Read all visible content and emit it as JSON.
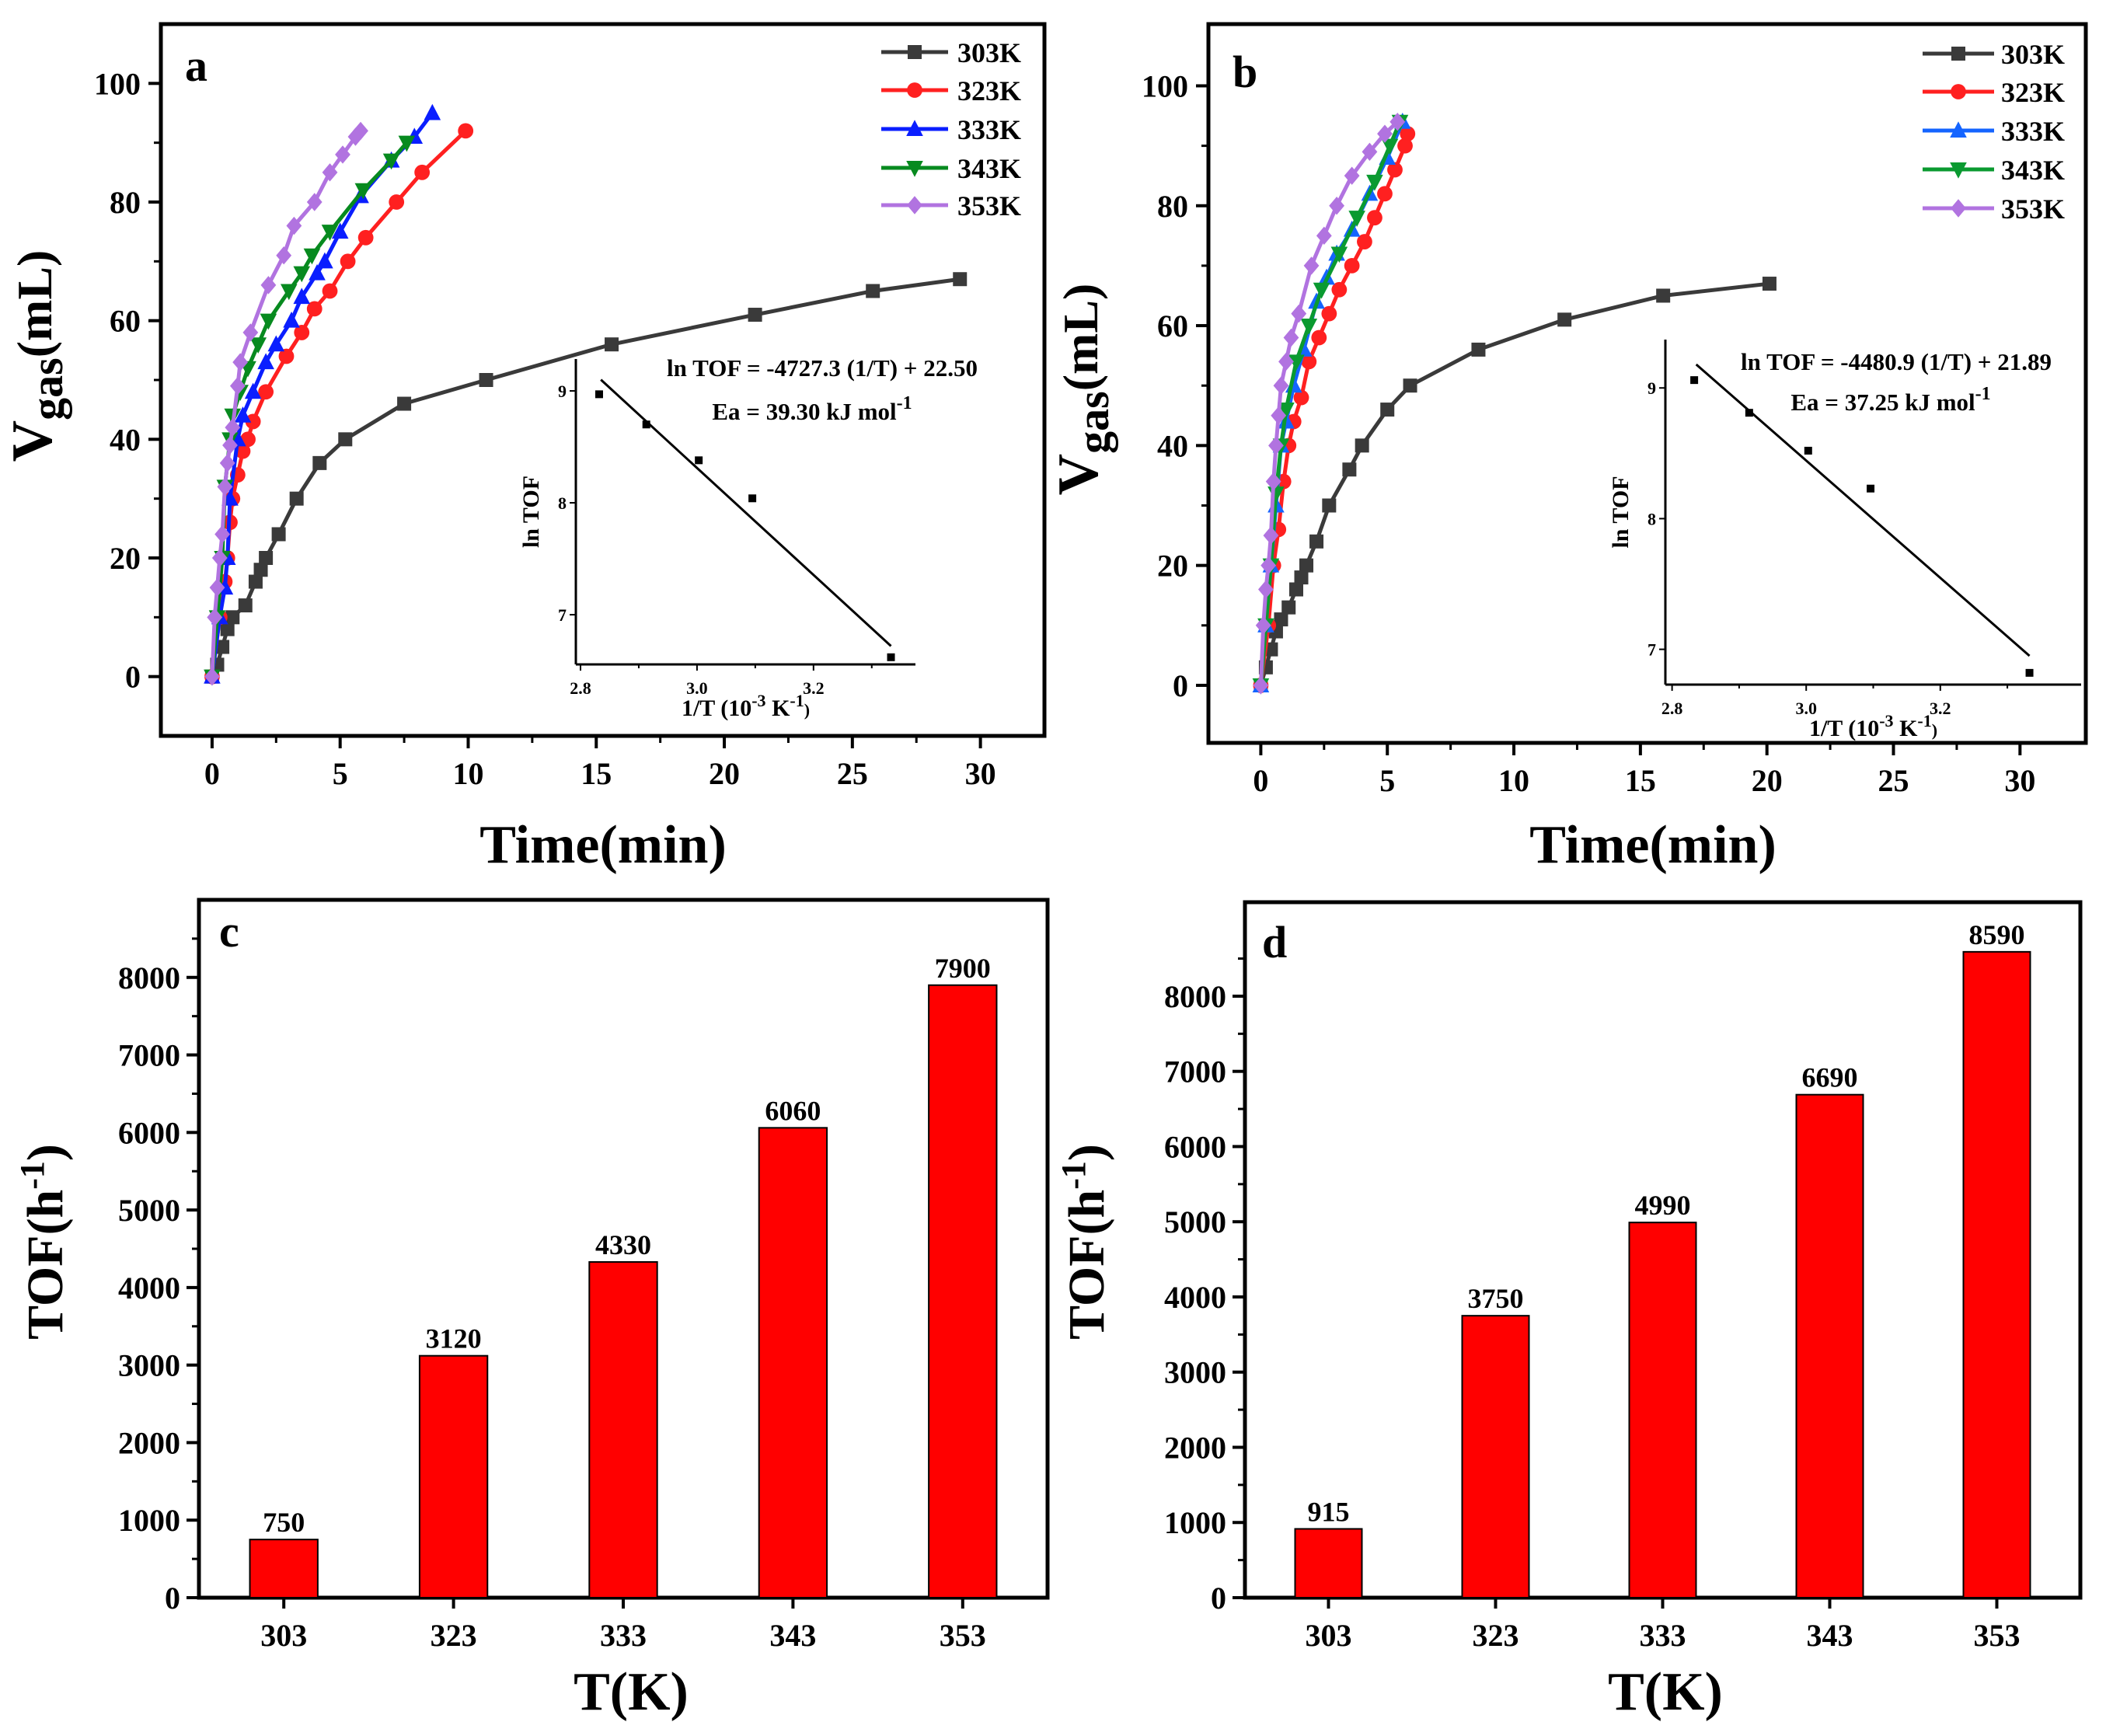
{
  "chart_data": [
    {
      "type": "line",
      "panel_label": "a",
      "xlabel": "Time(min)",
      "ylabel_main": "V",
      "ylabel_sub": "gas",
      "ylabel_rest": "(mL)",
      "xlim": [
        -2,
        32.5
      ],
      "ylim": [
        -10,
        110
      ],
      "xticks": [
        0,
        5,
        10,
        15,
        20,
        25,
        30
      ],
      "yticks": [
        0,
        20,
        40,
        60,
        80,
        100
      ],
      "legend_position": "top-right",
      "series": [
        {
          "name": "303K",
          "color": "#3a3a3a",
          "marker": "square",
          "points": [
            [
              0,
              0
            ],
            [
              0.2,
              2
            ],
            [
              0.4,
              5
            ],
            [
              0.6,
              8
            ],
            [
              0.8,
              10
            ],
            [
              1.3,
              12
            ],
            [
              1.7,
              16
            ],
            [
              1.9,
              18
            ],
            [
              2.1,
              20
            ],
            [
              2.6,
              24
            ],
            [
              3.3,
              30
            ],
            [
              4.2,
              36
            ],
            [
              5.2,
              40
            ],
            [
              7.5,
              46
            ],
            [
              10.7,
              50
            ],
            [
              15.6,
              56
            ],
            [
              21.2,
              61
            ],
            [
              25.8,
              65
            ],
            [
              29.2,
              67
            ]
          ]
        },
        {
          "name": "323K",
          "color": "#ff2020",
          "marker": "circle",
          "points": [
            [
              0,
              0
            ],
            [
              0.3,
              10
            ],
            [
              0.5,
              16
            ],
            [
              0.6,
              20
            ],
            [
              0.7,
              26
            ],
            [
              0.8,
              30
            ],
            [
              1,
              34
            ],
            [
              1.2,
              38
            ],
            [
              1.4,
              40
            ],
            [
              1.6,
              43
            ],
            [
              2.1,
              48
            ],
            [
              2.9,
              54
            ],
            [
              3.5,
              58
            ],
            [
              4,
              62
            ],
            [
              4.6,
              65
            ],
            [
              5.3,
              70
            ],
            [
              6,
              74
            ],
            [
              7.2,
              80
            ],
            [
              8.2,
              85
            ],
            [
              9.9,
              92
            ]
          ]
        },
        {
          "name": "333K",
          "color": "#0a1eff",
          "marker": "triangle-up",
          "points": [
            [
              0,
              0
            ],
            [
              0.3,
              10
            ],
            [
              0.5,
              15
            ],
            [
              0.6,
              20
            ],
            [
              0.7,
              30
            ],
            [
              1,
              40
            ],
            [
              1.2,
              44
            ],
            [
              1.6,
              48
            ],
            [
              2.1,
              53
            ],
            [
              2.5,
              56
            ],
            [
              3.1,
              60
            ],
            [
              3.5,
              64
            ],
            [
              4.1,
              68
            ],
            [
              4.4,
              70
            ],
            [
              5,
              75
            ],
            [
              5.8,
              81
            ],
            [
              7,
              87
            ],
            [
              7.9,
              91
            ],
            [
              8.6,
              95
            ]
          ]
        },
        {
          "name": "343K",
          "color": "#078a1f",
          "marker": "triangle-down",
          "points": [
            [
              0,
              0
            ],
            [
              0.2,
              10
            ],
            [
              0.4,
              20
            ],
            [
              0.5,
              32
            ],
            [
              0.7,
              40
            ],
            [
              0.8,
              44
            ],
            [
              1.1,
              48
            ],
            [
              1.4,
              52
            ],
            [
              1.8,
              56
            ],
            [
              2.2,
              60
            ],
            [
              3,
              65
            ],
            [
              3.5,
              68
            ],
            [
              3.9,
              71
            ],
            [
              4.6,
              75
            ],
            [
              5.9,
              82
            ],
            [
              7,
              87
            ],
            [
              7.6,
              90
            ]
          ]
        },
        {
          "name": "353K",
          "color": "#b173e0",
          "marker": "diamond",
          "points": [
            [
              0,
              0
            ],
            [
              0.1,
              10
            ],
            [
              0.2,
              15
            ],
            [
              0.3,
              20
            ],
            [
              0.4,
              24
            ],
            [
              0.5,
              32
            ],
            [
              0.6,
              36
            ],
            [
              0.7,
              39
            ],
            [
              0.8,
              42
            ],
            [
              1,
              49
            ],
            [
              1.1,
              53
            ],
            [
              1.5,
              58
            ],
            [
              2.2,
              66
            ],
            [
              2.8,
              71
            ],
            [
              3.2,
              76
            ],
            [
              4,
              80
            ],
            [
              4.6,
              85
            ],
            [
              5.1,
              88
            ],
            [
              5.6,
              91
            ],
            [
              5.8,
              92
            ]
          ]
        }
      ],
      "inset": {
        "type": "scatter",
        "xlabel": "1/T (10",
        "xlabel_sup1": "-3",
        "xlabel_mid": " K",
        "xlabel_sup2": "-1",
        "xlabel_end": ")",
        "ylabel": "ln TOF",
        "xlim": [
          2.792,
          3.375
        ],
        "ylim": [
          6.556,
          9.285
        ],
        "xticks": [
          "2.8",
          "3.0",
          "3.2"
        ],
        "yticks": [
          "7",
          "8",
          "9"
        ],
        "x": [
          2.832,
          2.913,
          3.003,
          3.095,
          3.333
        ],
        "y": [
          8.97,
          8.7,
          8.38,
          8.04,
          6.62
        ],
        "fit": {
          "slope": -4727.3,
          "intercept": 22.5
        },
        "fit_line_y": [
          9.1,
          6.72
        ],
        "equation": "ln TOF = -4727.3 (1/T) + 22.50",
        "ea_text": "Ea = 39.30 kJ mol",
        "ea_sup": "-1"
      }
    },
    {
      "type": "line",
      "panel_label": "b",
      "xlabel": "Time(min)",
      "ylabel_main": "V",
      "ylabel_sub": "gas",
      "ylabel_rest": "(mL)",
      "xlim": [
        -2.07,
        32.6
      ],
      "ylim": [
        -9.6,
        110.3
      ],
      "xticks": [
        0,
        5,
        10,
        15,
        20,
        25,
        30
      ],
      "yticks": [
        0,
        20,
        40,
        60,
        80,
        100
      ],
      "legend_position": "top-right",
      "series": [
        {
          "name": "303K",
          "color": "#3a3a3a",
          "marker": "square",
          "points": [
            [
              0,
              0
            ],
            [
              0.2,
              3
            ],
            [
              0.4,
              6
            ],
            [
              0.6,
              9
            ],
            [
              0.8,
              11
            ],
            [
              1.1,
              13
            ],
            [
              1.4,
              16
            ],
            [
              1.6,
              18
            ],
            [
              1.8,
              20
            ],
            [
              2.2,
              24
            ],
            [
              2.7,
              30
            ],
            [
              3.5,
              36
            ],
            [
              4,
              40
            ],
            [
              5,
              46
            ],
            [
              5.9,
              50
            ],
            [
              8.6,
              56
            ],
            [
              12,
              61
            ],
            [
              15.9,
              65
            ],
            [
              20.1,
              67
            ]
          ]
        },
        {
          "name": "323K",
          "color": "#ff2020",
          "marker": "circle",
          "points": [
            [
              0,
              0
            ],
            [
              0.3,
              10
            ],
            [
              0.5,
              20
            ],
            [
              0.7,
              26
            ],
            [
              0.9,
              34
            ],
            [
              1.1,
              40
            ],
            [
              1.3,
              44
            ],
            [
              1.6,
              48
            ],
            [
              1.9,
              54
            ],
            [
              2.3,
              58
            ],
            [
              2.7,
              62
            ],
            [
              3.1,
              66
            ],
            [
              3.6,
              70
            ],
            [
              4.1,
              74
            ],
            [
              4.5,
              78
            ],
            [
              4.9,
              82
            ],
            [
              5.3,
              86
            ],
            [
              5.7,
              90
            ],
            [
              5.8,
              92
            ]
          ]
        },
        {
          "name": "333K",
          "color": "#1464ff",
          "marker": "triangle-up",
          "points": [
            [
              0,
              0
            ],
            [
              0.2,
              10
            ],
            [
              0.4,
              20
            ],
            [
              0.6,
              30
            ],
            [
              0.8,
              40
            ],
            [
              1,
              44
            ],
            [
              1.3,
              50
            ],
            [
              1.7,
              56
            ],
            [
              2.2,
              64
            ],
            [
              2.6,
              68
            ],
            [
              3,
              72
            ],
            [
              3.6,
              76
            ],
            [
              4.3,
              82
            ],
            [
              5,
              88
            ],
            [
              5.6,
              94
            ]
          ]
        },
        {
          "name": "343K",
          "color": "#0a9a30",
          "marker": "triangle-down",
          "points": [
            [
              0,
              0
            ],
            [
              0.2,
              10
            ],
            [
              0.4,
              20
            ],
            [
              0.6,
              32
            ],
            [
              0.8,
              40
            ],
            [
              1.0,
              46
            ],
            [
              1.4,
              54
            ],
            [
              1.9,
              60
            ],
            [
              2.4,
              66
            ],
            [
              3.1,
              72
            ],
            [
              3.8,
              78
            ],
            [
              4.5,
              84
            ],
            [
              5.1,
              90
            ],
            [
              5.5,
              94
            ]
          ]
        },
        {
          "name": "353K",
          "color": "#b173e0",
          "marker": "diamond",
          "points": [
            [
              0,
              0
            ],
            [
              0.1,
              10
            ],
            [
              0.2,
              16
            ],
            [
              0.3,
              20
            ],
            [
              0.4,
              25
            ],
            [
              0.5,
              34
            ],
            [
              0.6,
              40
            ],
            [
              0.7,
              45
            ],
            [
              0.8,
              50
            ],
            [
              1,
              54
            ],
            [
              1.2,
              58
            ],
            [
              1.5,
              62
            ],
            [
              2,
              70
            ],
            [
              2.5,
              75
            ],
            [
              3,
              80
            ],
            [
              3.6,
              85
            ],
            [
              4.3,
              89
            ],
            [
              4.9,
              92
            ],
            [
              5.4,
              94
            ]
          ]
        }
      ],
      "inset": {
        "type": "scatter",
        "xlabel": "1/T (10",
        "xlabel_sup1": "-3",
        "xlabel_mid": " K",
        "xlabel_sup2": "-1",
        "xlabel_end": ")",
        "ylabel": "ln TOF",
        "xlim": [
          2.79,
          3.41
        ],
        "ylim": [
          6.73,
          9.37
        ],
        "xticks": [
          "2.8",
          "3.0",
          "3.2"
        ],
        "yticks": [
          "7",
          "8",
          "9"
        ],
        "x": [
          2.833,
          2.915,
          3.003,
          3.096,
          3.333
        ],
        "y": [
          9.06,
          8.81,
          8.52,
          8.23,
          6.82
        ],
        "fit": {
          "slope": -4480.9,
          "intercept": 21.89
        },
        "fit_line_y": [
          9.18,
          6.95
        ],
        "equation": "ln TOF = -4480.9 (1/T) + 21.89",
        "ea_text": "Ea = 37.25 kJ mol",
        "ea_sup": "-1"
      }
    },
    {
      "type": "bar",
      "panel_label": "c",
      "xlabel": "T(K)",
      "ylabel": "TOF(h",
      "ylabel_sup": "-1",
      "ylabel_end": ")",
      "categories": [
        "303",
        "323",
        "333",
        "343",
        "353"
      ],
      "values": [
        750,
        3120,
        4330,
        6060,
        7900
      ],
      "data_labels": [
        "750",
        "3120",
        "4330",
        "6060",
        "7900"
      ],
      "ylim": [
        0,
        9000
      ],
      "yticks": [
        0,
        1000,
        2000,
        3000,
        4000,
        5000,
        6000,
        7000,
        8000
      ],
      "color": "#ff0000"
    },
    {
      "type": "bar",
      "panel_label": "d",
      "xlabel": "T(K)",
      "ylabel": "TOF(h",
      "ylabel_sup": "-1",
      "ylabel_end": ")",
      "categories": [
        "303",
        "323",
        "333",
        "343",
        "353"
      ],
      "values": [
        915,
        3750,
        4990,
        6690,
        8590
      ],
      "data_labels": [
        "915",
        "3750",
        "4990",
        "6690",
        "8590"
      ],
      "ylim": [
        0,
        9250
      ],
      "yticks": [
        0,
        1000,
        2000,
        3000,
        4000,
        5000,
        6000,
        7000,
        8000
      ],
      "color": "#ff0000"
    }
  ]
}
